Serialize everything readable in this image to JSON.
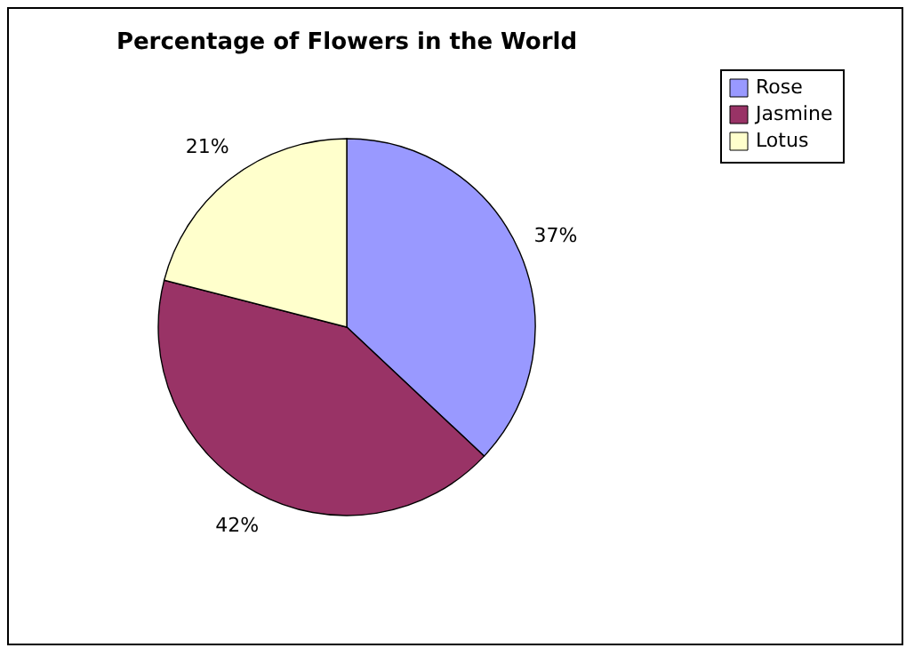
{
  "chart_data": {
    "type": "pie",
    "title": "Percentage of Flowers in the World",
    "categories": [
      "Rose",
      "Jasmine",
      "Lotus"
    ],
    "values": [
      37,
      42,
      21
    ],
    "value_labels": [
      "37%",
      "42%",
      "21%"
    ],
    "colors": [
      "#9999ff",
      "#993366",
      "#ffffcc"
    ],
    "legend": "right"
  }
}
